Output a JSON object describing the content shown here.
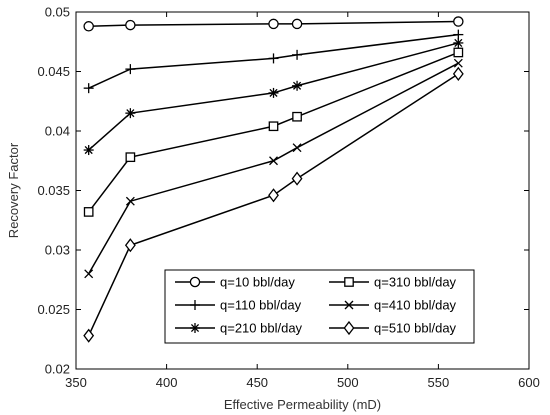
{
  "chart_data": {
    "type": "line",
    "xlabel": "Effective Permeability (mD)",
    "ylabel": "Recovery Factor",
    "xlim": [
      350,
      600
    ],
    "ylim": [
      0.02,
      0.05
    ],
    "xticks": [
      350,
      400,
      450,
      500,
      550,
      600
    ],
    "yticks": [
      0.02,
      0.025,
      0.03,
      0.035,
      0.04,
      0.045,
      0.05
    ],
    "xtick_labels": [
      "350",
      "400",
      "450",
      "500",
      "550",
      "600"
    ],
    "ytick_labels": [
      "0.02",
      "0.025",
      "0.03",
      "0.035",
      "0.04",
      "0.045",
      "0.05"
    ],
    "grid": false,
    "legend_position": "bottom-right",
    "x": [
      357,
      380,
      459,
      472,
      561
    ],
    "series": [
      {
        "name": "q=10 bbl/day",
        "marker": "circle",
        "values": [
          0.0488,
          0.0489,
          0.049,
          0.049,
          0.0492
        ]
      },
      {
        "name": "q=110 bbl/day",
        "marker": "plus",
        "values": [
          0.0436,
          0.0452,
          0.0461,
          0.0464,
          0.0481
        ]
      },
      {
        "name": "q=210 bbl/day",
        "marker": "asterisk",
        "values": [
          0.0384,
          0.0415,
          0.0432,
          0.0438,
          0.0474
        ]
      },
      {
        "name": "q=310 bbl/day",
        "marker": "square",
        "values": [
          0.0332,
          0.0378,
          0.0404,
          0.0412,
          0.0466
        ]
      },
      {
        "name": "q=410 bbl/day",
        "marker": "x",
        "values": [
          0.028,
          0.0341,
          0.0375,
          0.0386,
          0.0457
        ]
      },
      {
        "name": "q=510 bbl/day",
        "marker": "diamond",
        "values": [
          0.0228,
          0.0304,
          0.0346,
          0.036,
          0.0448
        ]
      }
    ],
    "line_color": "#000000"
  }
}
